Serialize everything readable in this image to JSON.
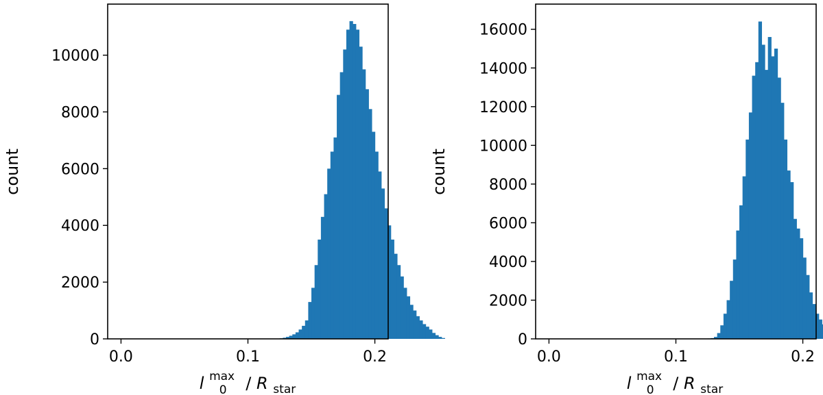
{
  "chart_data": [
    {
      "type": "bar",
      "subtype": "histogram",
      "xlabel": {
        "main": "l",
        "sup": "max",
        "sub": "0",
        "after": "/",
        "main2": "R",
        "sub2": "star"
      },
      "ylabel": "count",
      "xlim": [
        -0.0105,
        0.2105
      ],
      "ylim": [
        0,
        11800
      ],
      "xticks": [
        0.0,
        0.1,
        0.2
      ],
      "xtick_labels": [
        "0.0",
        "0.1",
        "0.2"
      ],
      "yticks": [
        0,
        2000,
        4000,
        6000,
        8000,
        10000
      ],
      "ytick_labels": [
        "0",
        "2000",
        "4000",
        "6000",
        "8000",
        "10000"
      ],
      "color": "#1f77b4",
      "bin_width": 0.0025,
      "bin_start": 0.0,
      "values": [
        0,
        0,
        0,
        0,
        0,
        0,
        0,
        0,
        0,
        0,
        0,
        0,
        0,
        0,
        0,
        0,
        0,
        0,
        0,
        0,
        0,
        0,
        0,
        0,
        0,
        0,
        0,
        0,
        0,
        0,
        0,
        0,
        0,
        0,
        0,
        0,
        0,
        0,
        0,
        0,
        0,
        0,
        0,
        0,
        0,
        0,
        0,
        0,
        0,
        0,
        20,
        40,
        70,
        110,
        160,
        230,
        330,
        460,
        650,
        1300,
        1800,
        2600,
        3500,
        4300,
        5100,
        6000,
        6600,
        7100,
        8600,
        9400,
        10200,
        10900,
        11200,
        11100,
        10900,
        10300,
        9500,
        8800,
        8100,
        7300,
        6600,
        5900,
        5300,
        4600,
        4000,
        3500,
        3000,
        2600,
        2200,
        1800,
        1500,
        1200,
        1000,
        800,
        650,
        520,
        430,
        330,
        210,
        130,
        70,
        30
      ],
      "grid": false
    },
    {
      "type": "bar",
      "subtype": "histogram",
      "xlabel": {
        "main": "l",
        "sup": "max",
        "sub": "0",
        "after": "/",
        "main2": "R",
        "sub2": "star"
      },
      "ylabel": "count",
      "xlim": [
        -0.0105,
        0.2105
      ],
      "ylim": [
        0,
        17300
      ],
      "xticks": [
        0.0,
        0.1,
        0.2
      ],
      "xtick_labels": [
        "0.0",
        "0.1",
        "0.2"
      ],
      "yticks": [
        0,
        2000,
        4000,
        6000,
        8000,
        10000,
        12000,
        14000,
        16000
      ],
      "ytick_labels": [
        "0",
        "2000",
        "4000",
        "6000",
        "8000",
        "10000",
        "12000",
        "14000",
        "16000"
      ],
      "color": "#1f77b4",
      "bin_width": 0.0025,
      "bin_start": 0.0,
      "values": [
        0,
        0,
        0,
        0,
        0,
        0,
        0,
        0,
        0,
        0,
        0,
        0,
        0,
        0,
        0,
        0,
        0,
        0,
        0,
        0,
        0,
        0,
        0,
        0,
        0,
        0,
        0,
        0,
        0,
        0,
        0,
        0,
        0,
        0,
        0,
        0,
        0,
        0,
        0,
        0,
        0,
        0,
        0,
        0,
        0,
        0,
        0,
        0,
        0,
        0,
        20,
        40,
        100,
        300,
        700,
        1300,
        2000,
        3000,
        4100,
        5600,
        6900,
        8400,
        10300,
        11700,
        13600,
        14300,
        16400,
        15200,
        13900,
        15600,
        14600,
        15000,
        13500,
        12200,
        10300,
        8700,
        8100,
        6200,
        5700,
        5200,
        4200,
        3300,
        2400,
        1800,
        1300,
        1000,
        750,
        500,
        330,
        180,
        120,
        70,
        40,
        20
      ]
    }
  ]
}
